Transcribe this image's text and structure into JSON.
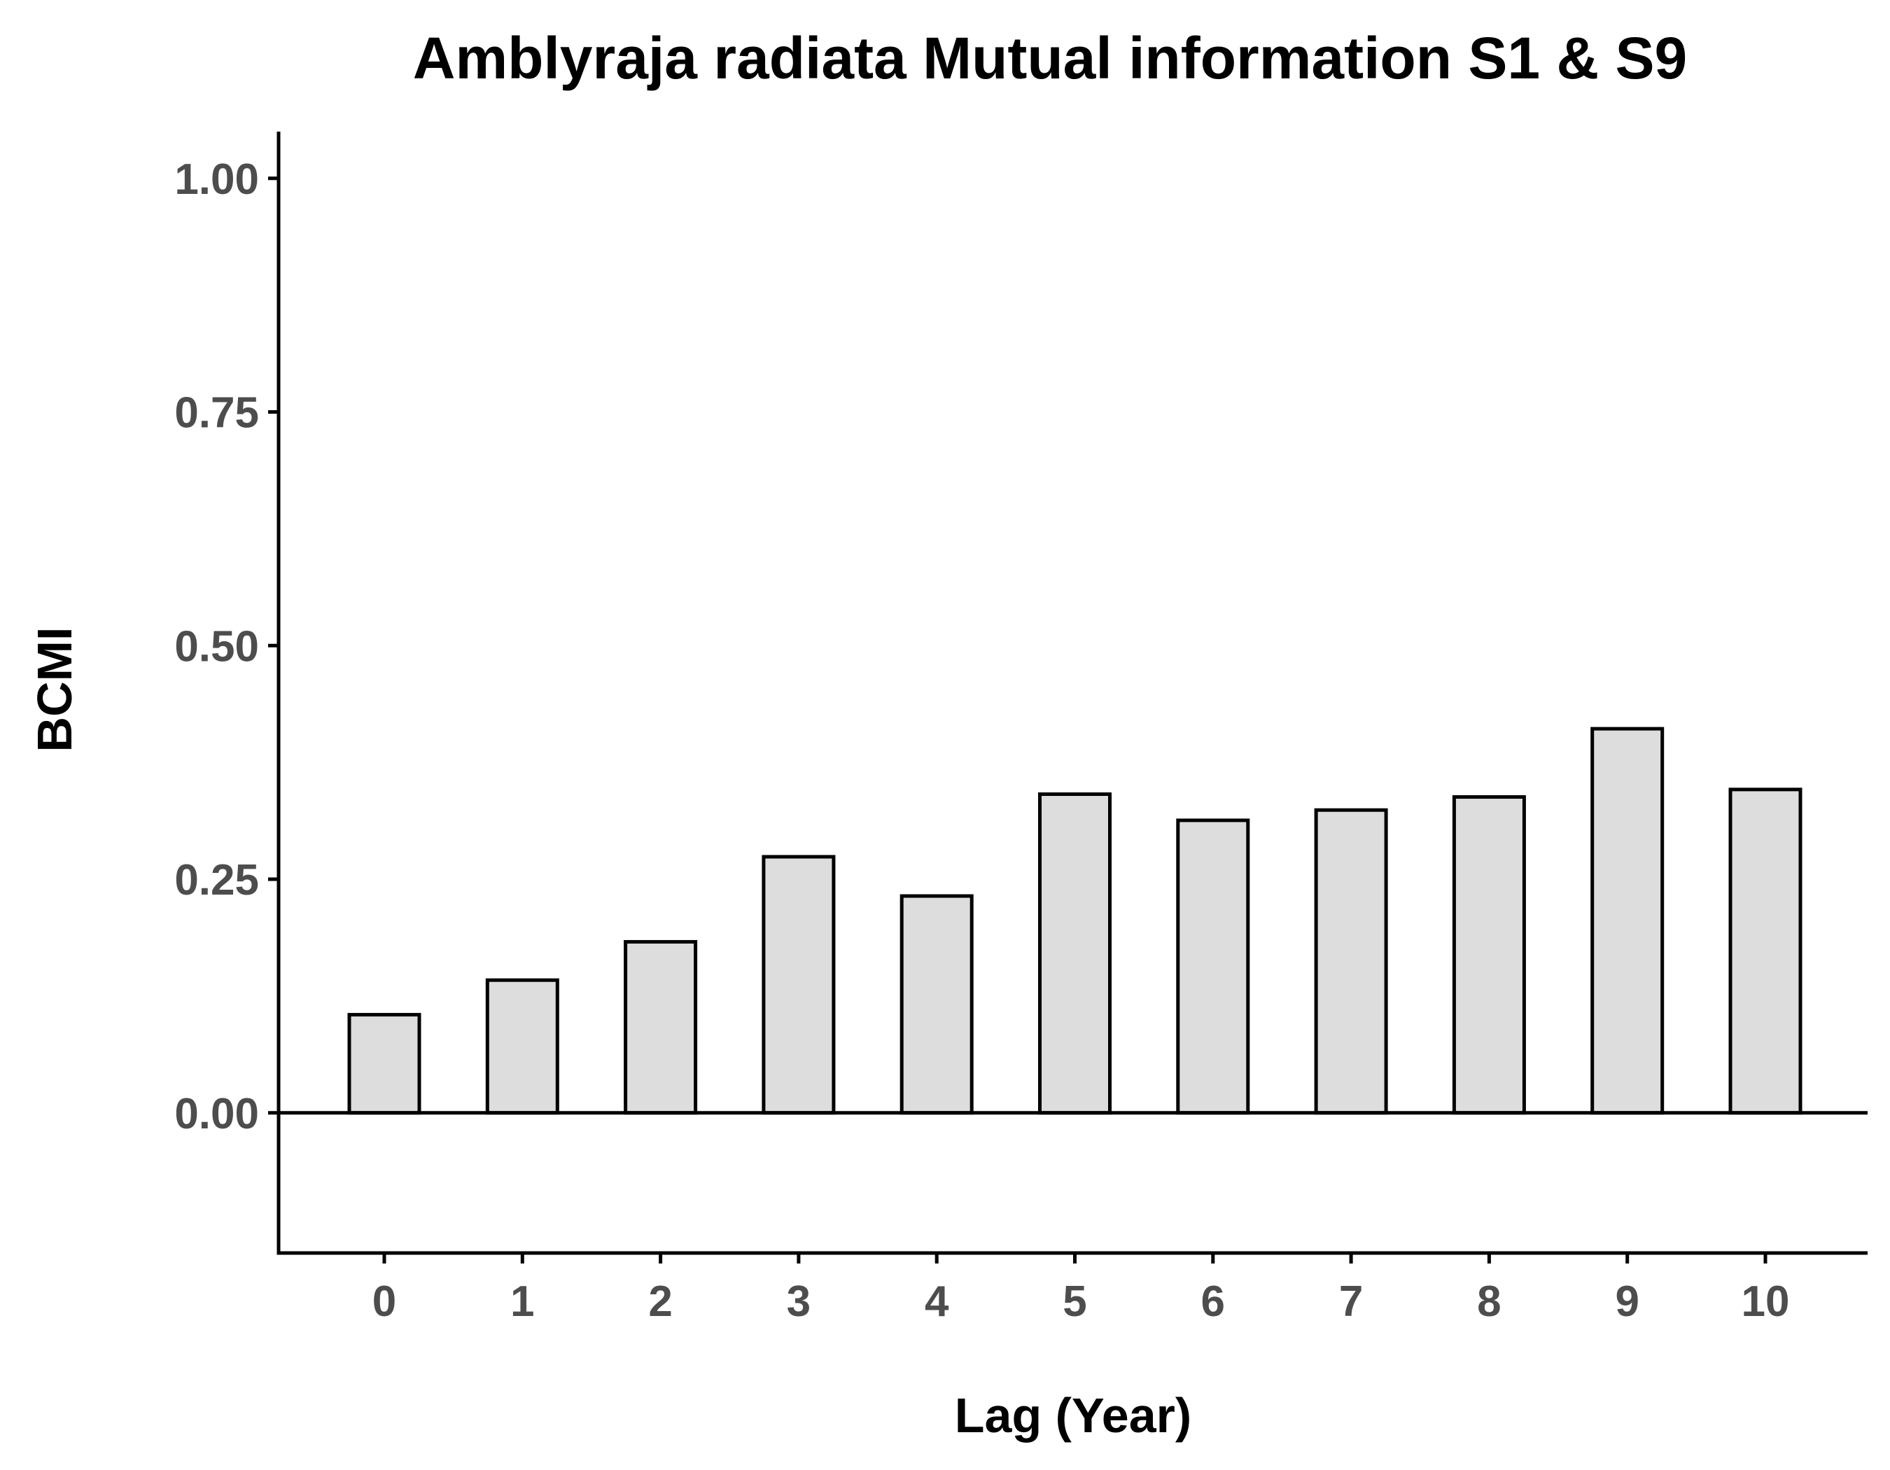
{
  "chart_data": {
    "type": "bar",
    "title": "Amblyraja radiata Mutual information S1 & S9",
    "xlabel": "Lag (Year)",
    "ylabel": "BCMI",
    "categories": [
      "0",
      "1",
      "2",
      "3",
      "4",
      "5",
      "6",
      "7",
      "8",
      "9",
      "10"
    ],
    "values": [
      0.105,
      0.142,
      0.183,
      0.274,
      0.232,
      0.341,
      0.313,
      0.324,
      0.338,
      0.411,
      0.346
    ],
    "ylim": [
      -0.15,
      1.05
    ],
    "yticks": [
      "0.00",
      "0.25",
      "0.50",
      "0.75",
      "1.00"
    ],
    "reference_line": 0,
    "grid": false,
    "legend": "none",
    "colors": {
      "bar_fill": "#dddddd",
      "bar_stroke": "#000000",
      "tick_label": "#4d4d4d"
    }
  }
}
